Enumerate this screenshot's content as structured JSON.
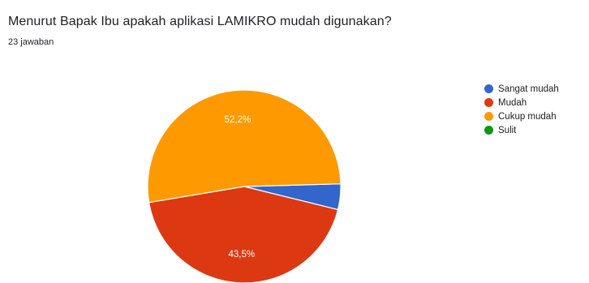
{
  "question": {
    "title": "Menurut Bapak Ibu apakah aplikasi LAMIKRO mudah digunakan?",
    "response_count": "23 jawaban"
  },
  "chart_data": {
    "type": "pie",
    "categories": [
      "Sangat mudah",
      "Mudah",
      "Cukup mudah",
      "Sulit"
    ],
    "values": [
      4.3,
      43.5,
      52.2,
      0
    ],
    "data_labels": [
      "",
      "43,5%",
      "52,2%",
      ""
    ],
    "colors": [
      "#3366cc",
      "#dc3912",
      "#ff9900",
      "#109618"
    ],
    "legend_position": "right"
  }
}
